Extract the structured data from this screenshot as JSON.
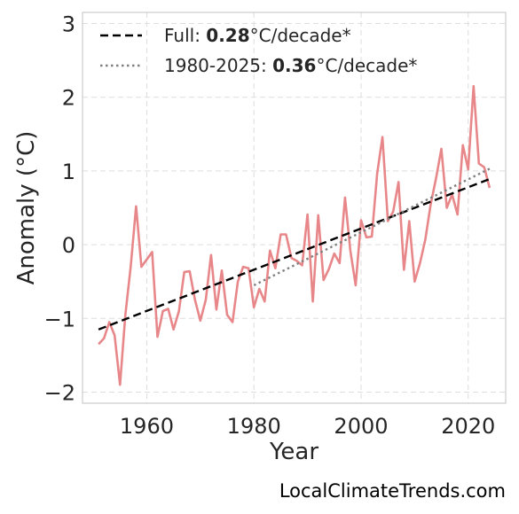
{
  "chart_data": {
    "type": "line",
    "xlabel": "Year",
    "ylabel": "Anomaly (°C)",
    "xlim": [
      1948,
      2027
    ],
    "ylim": [
      -2.15,
      3.15
    ],
    "xticks": [
      1960,
      1980,
      2000,
      2020
    ],
    "xtick_labels": [
      "1960",
      "1980",
      "2000",
      "2020"
    ],
    "yticks": [
      -2,
      -1,
      0,
      1,
      2,
      3
    ],
    "ytick_labels": [
      "−2",
      "−1",
      "0",
      "1",
      "2",
      "3"
    ],
    "grid": true,
    "legend_position": "top-left",
    "series": [
      {
        "name": "",
        "color": "#e8878a",
        "style": "solid",
        "x": [
          1951,
          1952,
          1953,
          1954,
          1955,
          1956,
          1957,
          1958,
          1959,
          1960,
          1961,
          1962,
          1963,
          1964,
          1965,
          1966,
          1967,
          1968,
          1969,
          1970,
          1971,
          1972,
          1973,
          1974,
          1975,
          1976,
          1977,
          1978,
          1979,
          1980,
          1981,
          1982,
          1983,
          1984,
          1985,
          1986,
          1987,
          1988,
          1989,
          1990,
          1991,
          1992,
          1993,
          1994,
          1995,
          1996,
          1997,
          1998,
          1999,
          2000,
          2001,
          2002,
          2003,
          2004,
          2005,
          2006,
          2007,
          2008,
          2009,
          2010,
          2011,
          2012,
          2013,
          2014,
          2015,
          2016,
          2017,
          2018,
          2019,
          2020,
          2021,
          2022,
          2023,
          2024
        ],
        "y": [
          -1.35,
          -1.27,
          -1.05,
          -1.23,
          -1.9,
          -0.95,
          -0.3,
          0.52,
          -0.3,
          -0.2,
          -0.1,
          -1.25,
          -0.9,
          -0.87,
          -1.15,
          -0.9,
          -0.37,
          -0.36,
          -0.75,
          -1.03,
          -0.75,
          -0.14,
          -0.88,
          -0.35,
          -0.95,
          -1.05,
          -0.5,
          -0.3,
          -0.32,
          -0.85,
          -0.6,
          -0.77,
          -0.08,
          -0.32,
          0.14,
          0.14,
          -0.18,
          -0.22,
          -0.28,
          0.41,
          -0.77,
          0.4,
          -0.48,
          -0.33,
          -0.12,
          -0.25,
          0.64,
          -0.08,
          -0.55,
          0.33,
          0.1,
          0.11,
          0.96,
          1.46,
          0.32,
          0.45,
          0.85,
          -0.34,
          0.32,
          -0.5,
          -0.25,
          0.07,
          0.55,
          0.9,
          1.3,
          0.5,
          0.68,
          0.41,
          1.35,
          1.02,
          2.15,
          1.1,
          1.05,
          0.77
        ]
      },
      {
        "name": "Full: 0.28°C/decade*",
        "color": "#000000",
        "style": "dashed",
        "x": [
          1951,
          2024
        ],
        "y": [
          -1.15,
          0.89
        ]
      },
      {
        "name": "1980-2025: 0.36°C/decade*",
        "color": "#808080",
        "style": "dotted",
        "x": [
          1980,
          2024
        ],
        "y": [
          -0.55,
          1.03
        ]
      }
    ],
    "legend": [
      {
        "prefix": "Full: ",
        "value": "0.28",
        "suffix": "°C/decade*"
      },
      {
        "prefix": "1980-2025: ",
        "value": "0.36",
        "suffix": "°C/decade*"
      }
    ],
    "credit": "LocalClimateTrends.com"
  }
}
